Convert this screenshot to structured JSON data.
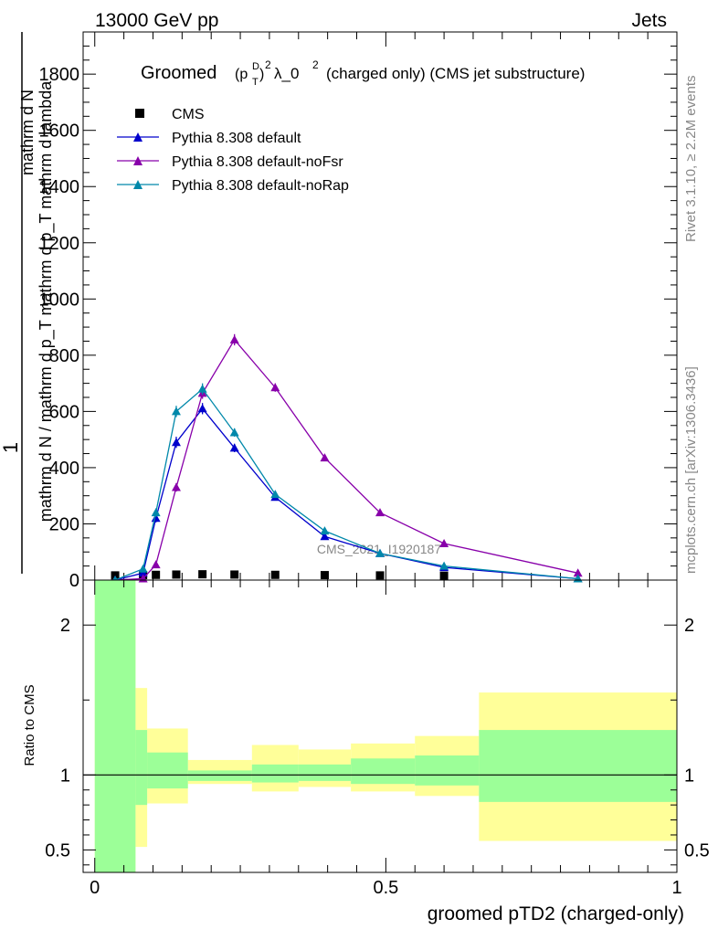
{
  "header": {
    "energy_label": "13000 GeV pp",
    "category_label": "Jets"
  },
  "side_labels": {
    "rivet": "Rivet 3.1.10, ≥ 2.2M events",
    "mcplots": "mcplots.cern.ch [arXiv:1306.3436]"
  },
  "chart_data": [
    {
      "type": "line",
      "title_main": "Groomed",
      "title_formula": "(p",
      "title_sup_d": "D",
      "title_sub_t": "T",
      "title_sq": ")",
      "title_sup_2": "2",
      "title_lambda": "λ_0",
      "title_sup_2b": "2",
      "title_rest": "(charged only) (CMS jet substructure)",
      "ylabel_top": "1",
      "ylabel_num": "mathrm d N",
      "ylabel_den": "mathrm d N / mathrm d p_T mathrm d p_T mathrm d lambda",
      "ylabel_full_left": "mathrm d N / mathrm d p",
      "ylabel_full_sub": "T",
      "ylabel_full_right": " mathrm d p",
      "ylabel_full_sub2": "T",
      "ylabel_full_end": " mathrm d lambda",
      "ylim": [
        0,
        1950
      ],
      "yticks": [
        0,
        200,
        400,
        600,
        800,
        1000,
        1200,
        1400,
        1600,
        1800
      ],
      "ytick_labels": [
        "0",
        "200",
        "400",
        "600",
        "800",
        "1000",
        "1200",
        "1400",
        "1600",
        "1800"
      ],
      "xlim": [
        -0.02,
        1.0
      ],
      "watermark": "CMS_2021_I1920187",
      "legend_position": "top-left",
      "series": [
        {
          "name": "CMS",
          "color": "#000000",
          "marker": "square",
          "x": [
            0.035,
            0.083,
            0.105,
            0.14,
            0.185,
            0.24,
            0.31,
            0.395,
            0.49,
            0.6
          ],
          "y": [
            2,
            3,
            4,
            5,
            6,
            5,
            4,
            3,
            2,
            1
          ]
        },
        {
          "name": "Pythia 8.308 default",
          "color": "#0000cc",
          "marker": "triangle",
          "x": [
            0.035,
            0.083,
            0.105,
            0.14,
            0.185,
            0.24,
            0.31,
            0.395,
            0.49,
            0.6,
            0.83
          ],
          "y": [
            0,
            25,
            220,
            490,
            610,
            470,
            295,
            155,
            95,
            45,
            5
          ],
          "err": [
            0,
            5,
            15,
            20,
            20,
            15,
            12,
            10,
            8,
            6,
            2
          ]
        },
        {
          "name": "Pythia 8.308 default-noFsr",
          "color": "#8800aa",
          "marker": "triangle",
          "x": [
            0.035,
            0.083,
            0.105,
            0.14,
            0.185,
            0.24,
            0.31,
            0.395,
            0.49,
            0.6,
            0.83
          ],
          "y": [
            0,
            5,
            55,
            330,
            665,
            855,
            685,
            435,
            240,
            130,
            25
          ],
          "err": [
            0,
            2,
            6,
            15,
            20,
            20,
            15,
            12,
            10,
            8,
            4
          ]
        },
        {
          "name": "Pythia 8.308 default-noRap",
          "color": "#0088aa",
          "marker": "triangle",
          "x": [
            0.035,
            0.083,
            0.105,
            0.14,
            0.185,
            0.24,
            0.31,
            0.395,
            0.49,
            0.6,
            0.83
          ],
          "y": [
            0,
            40,
            240,
            600,
            680,
            525,
            305,
            175,
            95,
            50,
            5
          ],
          "err": [
            0,
            5,
            15,
            20,
            20,
            15,
            12,
            10,
            8,
            6,
            2
          ]
        }
      ]
    },
    {
      "type": "area",
      "ylabel": "Ratio to CMS",
      "xlabel": "groomed pTD2 (charged-only)",
      "ylim": [
        0.35,
        2.3
      ],
      "yticks": [
        0.5,
        1,
        2
      ],
      "ytick_labels": [
        "0.5",
        "1",
        "2"
      ],
      "xticks": [
        0,
        0.5,
        1
      ],
      "xtick_labels": [
        "0",
        "0.5",
        "1"
      ],
      "reference_line": 1,
      "bands": {
        "edges": [
          0.0,
          0.07,
          0.09,
          0.16,
          0.27,
          0.35,
          0.44,
          0.55,
          0.66,
          1.0
        ],
        "green_low": [
          0.35,
          0.8,
          0.91,
          0.96,
          0.95,
          0.96,
          0.94,
          0.93,
          0.82
        ],
        "green_high": [
          2.3,
          1.3,
          1.15,
          1.03,
          1.07,
          1.07,
          1.11,
          1.13,
          1.3
        ],
        "yellow_low": [
          0.35,
          0.52,
          0.81,
          0.94,
          0.89,
          0.92,
          0.89,
          0.86,
          0.56
        ],
        "yellow_high": [
          2.3,
          1.58,
          1.31,
          1.1,
          1.2,
          1.17,
          1.21,
          1.26,
          1.55
        ],
        "green_color": "#9cff98",
        "yellow_color": "#ffff99"
      }
    }
  ]
}
